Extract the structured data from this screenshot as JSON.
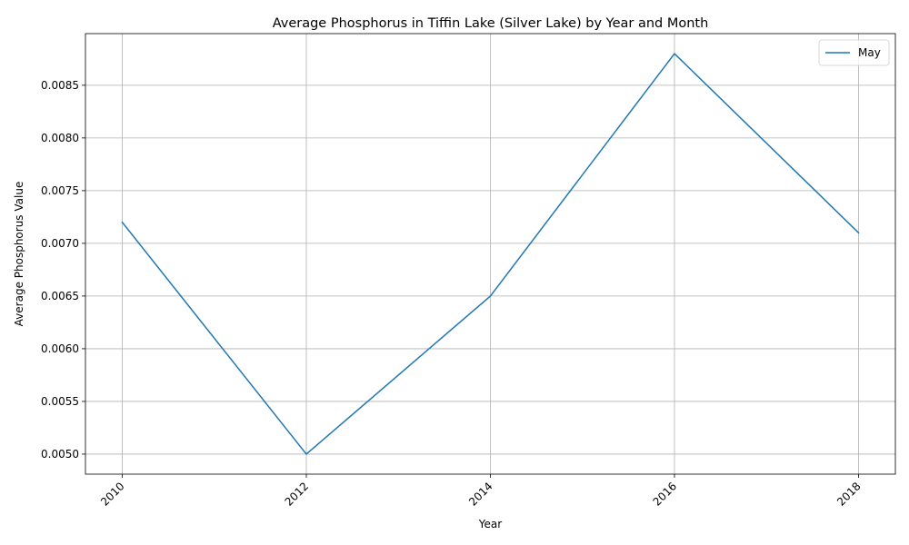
{
  "chart_data": {
    "type": "line",
    "title": "Average Phosphorus in Tiffin Lake (Silver Lake) by Year and Month",
    "xlabel": "Year",
    "ylabel": "Average Phosphorus Value",
    "x": [
      2010,
      2012,
      2014,
      2016,
      2018
    ],
    "x_ticks": [
      "2010",
      "2012",
      "2014",
      "2016",
      "2018"
    ],
    "y_ticks": [
      0.005,
      0.0055,
      0.006,
      0.0065,
      0.007,
      0.0075,
      0.008,
      0.0085
    ],
    "y_tick_labels": [
      "0.0050",
      "0.0055",
      "0.0060",
      "0.0065",
      "0.0070",
      "0.0075",
      "0.0080",
      "0.0085"
    ],
    "xlim": [
      2009.6,
      2018.4
    ],
    "ylim": [
      0.00481,
      0.00899
    ],
    "grid": true,
    "legend_position": "top-right",
    "series": [
      {
        "name": "May",
        "color": "#1f77b4",
        "values": [
          0.0072,
          0.005,
          0.0065,
          0.0088,
          0.0071
        ]
      }
    ]
  }
}
